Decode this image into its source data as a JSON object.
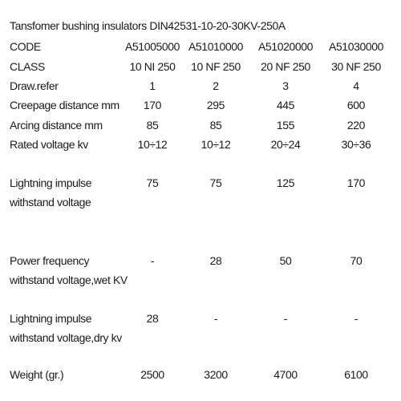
{
  "title": "Tansfomer bushing insulators DIN42531-10-20-30KV-250A",
  "table": {
    "rows": [
      {
        "label": [
          "CODE"
        ],
        "cells": [
          "A51005000",
          "A51010000",
          "A51020000",
          "A51030000"
        ]
      },
      {
        "label": [
          "CLASS"
        ],
        "cells": [
          "10 NI 250",
          "10 NF 250",
          "20 NF 250",
          "30 NF 250"
        ]
      },
      {
        "label": [
          "Draw.refer"
        ],
        "cells": [
          1,
          2,
          3,
          4
        ]
      },
      {
        "label": [
          "Creepage distance mm"
        ],
        "cells": [
          170,
          295,
          445,
          600
        ]
      },
      {
        "label": [
          "Arcing distance  mm"
        ],
        "cells": [
          85,
          85,
          155,
          220
        ]
      },
      {
        "label": [
          "Rated voltage kv"
        ],
        "cells": [
          "10÷12",
          "10÷12",
          "20÷24",
          "30÷36"
        ]
      },
      {
        "label": [
          "Lightning impulse",
          "withstand voltage"
        ],
        "cells": [
          75,
          75,
          125,
          170
        ]
      },
      {
        "label": [
          "Power frequency",
          "withstand voltage,wet KV"
        ],
        "cells": [
          "-",
          28,
          50,
          70
        ]
      },
      {
        "label": [
          "Lightning impulse",
          "withstand voltage,dry kv"
        ],
        "cells": [
          28,
          "-",
          "-",
          "-"
        ]
      },
      {
        "label": [
          "Weight (gr.)"
        ],
        "cells": [
          2500,
          3200,
          4700,
          6100
        ]
      }
    ]
  }
}
